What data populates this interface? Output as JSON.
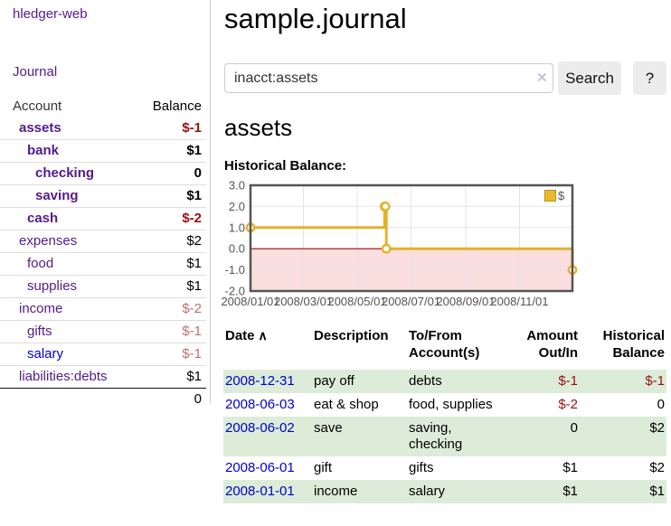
{
  "colors": {
    "link_purple": "#551a8b",
    "link_blue": "#0000cc",
    "negative_strong": "#991111",
    "negative_soft": "#c16f6f",
    "row_stripe_green": "#dcecd8",
    "series_gold": "#e3b22b",
    "negative_region_pink": "#fbdede",
    "zero_line_red": "#aa0000"
  },
  "sidebar": {
    "app_title": "hledger-web",
    "journal_link": "Journal",
    "accounts_table": {
      "headers": {
        "account": "Account",
        "balance": "Balance"
      },
      "rows": [
        {
          "name": "assets",
          "depth": 1,
          "bold": true,
          "balance": "$-1",
          "neg": "strong",
          "blue": false
        },
        {
          "name": "bank",
          "depth": 2,
          "bold": true,
          "balance": "$1",
          "neg": null,
          "blue": false
        },
        {
          "name": "checking",
          "depth": 3,
          "bold": true,
          "balance": "0",
          "neg": null,
          "blue": false
        },
        {
          "name": "saving",
          "depth": 3,
          "bold": true,
          "balance": "$1",
          "neg": null,
          "blue": false
        },
        {
          "name": "cash",
          "depth": 2,
          "bold": true,
          "balance": "$-2",
          "neg": "strong",
          "blue": false
        },
        {
          "name": "expenses",
          "depth": 1,
          "bold": false,
          "balance": "$2",
          "neg": null,
          "blue": false
        },
        {
          "name": "food",
          "depth": 2,
          "bold": false,
          "balance": "$1",
          "neg": null,
          "blue": false
        },
        {
          "name": "supplies",
          "depth": 2,
          "bold": false,
          "balance": "$1",
          "neg": null,
          "blue": false
        },
        {
          "name": "income",
          "depth": 1,
          "bold": false,
          "balance": "$-2",
          "neg": "soft",
          "blue": false
        },
        {
          "name": "gifts",
          "depth": 2,
          "bold": false,
          "balance": "$-1",
          "neg": "soft",
          "blue": false
        },
        {
          "name": "salary",
          "depth": 2,
          "bold": false,
          "balance": "$-1",
          "neg": "soft",
          "blue": true
        },
        {
          "name": "liabilities:debts",
          "depth": 1,
          "bold": false,
          "balance": "$1",
          "neg": null,
          "blue": false
        }
      ],
      "total": "0"
    }
  },
  "main": {
    "title": "sample.journal",
    "search": {
      "value": "inacct:assets",
      "clear_icon": "✕",
      "search_button": "Search",
      "help_button": "?"
    },
    "account_heading": "assets",
    "chart_label": "Historical Balance:"
  },
  "chart_data": {
    "type": "line",
    "step": true,
    "title": "Historical Balance",
    "series": [
      {
        "name": "$",
        "color": "#e3b22b",
        "points": [
          [
            "2008-01-01",
            1
          ],
          [
            "2008-06-01",
            2
          ],
          [
            "2008-06-02",
            2
          ],
          [
            "2008-06-03",
            0
          ],
          [
            "2008-12-31",
            -1
          ]
        ]
      }
    ],
    "ylim": [
      -2,
      3
    ],
    "y_ticks": [
      3.0,
      2.0,
      1.0,
      0.0,
      -1.0,
      -2.0
    ],
    "xlim": [
      "2008-01-01",
      "2008-12-31"
    ],
    "x_tick_labels": [
      "2008/01/01",
      "2008/03/01",
      "2008/05/01",
      "2008/07/01",
      "2008/09/01",
      "2008/11/01"
    ],
    "grid": true,
    "legend": {
      "label": "$",
      "position": "top-right"
    },
    "negative_region_color": "#fbdede",
    "zero_line_color": "#aa0000"
  },
  "transactions": {
    "headers": [
      "Date",
      "Description",
      "To/From Account(s)",
      "Amount Out/In",
      "Historical Balance"
    ],
    "sort_indicator": "∧",
    "rows": [
      {
        "date": "2008-12-31",
        "description": "pay off",
        "accounts": "debts",
        "amount": "$-1",
        "amount_neg": true,
        "balance": "$-1",
        "balance_neg": true
      },
      {
        "date": "2008-06-03",
        "description": "eat & shop",
        "accounts": "food, supplies",
        "amount": "$-2",
        "amount_neg": true,
        "balance": "0",
        "balance_neg": false
      },
      {
        "date": "2008-06-02",
        "description": "save",
        "accounts": "saving, checking",
        "amount": "0",
        "amount_neg": false,
        "balance": "$2",
        "balance_neg": false
      },
      {
        "date": "2008-06-01",
        "description": "gift",
        "accounts": "gifts",
        "amount": "$1",
        "amount_neg": false,
        "balance": "$2",
        "balance_neg": false
      },
      {
        "date": "2008-01-01",
        "description": "income",
        "accounts": "salary",
        "amount": "$1",
        "amount_neg": false,
        "balance": "$1",
        "balance_neg": false
      }
    ]
  }
}
